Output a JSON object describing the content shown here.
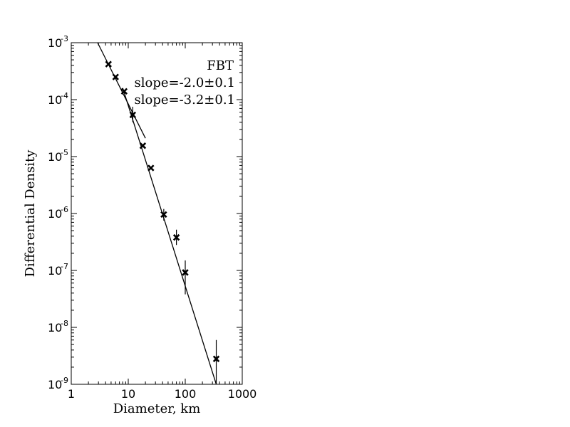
{
  "chart_data": {
    "type": "scatter",
    "title": "",
    "xlabel": "Diameter, km",
    "ylabel": "Differential Density",
    "x_scale": "log",
    "y_scale": "log",
    "xlim": [
      1,
      1000
    ],
    "ylim": [
      1e-09,
      0.001
    ],
    "x_ticks": [
      {
        "value": 1,
        "label": "1"
      },
      {
        "value": 10,
        "label": "10"
      },
      {
        "value": 100,
        "label": "100"
      },
      {
        "value": 1000,
        "label": "1000"
      }
    ],
    "y_ticks": [
      {
        "value": 1e-09,
        "base": "10",
        "exp": "-9"
      },
      {
        "value": 1e-08,
        "base": "10",
        "exp": "-8"
      },
      {
        "value": 1e-07,
        "base": "10",
        "exp": "-7"
      },
      {
        "value": 1e-06,
        "base": "10",
        "exp": "-6"
      },
      {
        "value": 1e-05,
        "base": "10",
        "exp": "-5"
      },
      {
        "value": 0.0001,
        "base": "10",
        "exp": "-4"
      },
      {
        "value": 0.001,
        "base": "10",
        "exp": "-3"
      }
    ],
    "grid": false,
    "annotations": [
      "FBT",
      "slope=-2.0±0.1",
      "slope=-3.2±0.1"
    ],
    "points": [
      {
        "x": 4.5,
        "y": 0.00042,
        "err_low": null,
        "err_high": null
      },
      {
        "x": 6.0,
        "y": 0.00025,
        "err_low": null,
        "err_high": null
      },
      {
        "x": 8.5,
        "y": 0.00014,
        "err_low": null,
        "err_high": null
      },
      {
        "x": 12.0,
        "y": 5.4e-05,
        "err_low": 4e-05,
        "err_high": 7.5e-05
      },
      {
        "x": 18.0,
        "y": 1.55e-05,
        "err_low": null,
        "err_high": null
      },
      {
        "x": 25.0,
        "y": 6.3e-06,
        "err_low": null,
        "err_high": null
      },
      {
        "x": 42.0,
        "y": 9.6e-07,
        "err_low": 7.5e-07,
        "err_high": 1.2e-06
      },
      {
        "x": 70.0,
        "y": 3.8e-07,
        "err_low": 2.8e-07,
        "err_high": 5.2e-07
      },
      {
        "x": 100.0,
        "y": 9.2e-08,
        "err_low": 3.8e-08,
        "err_high": 1.5e-07
      },
      {
        "x": 350.0,
        "y": 2.8e-09,
        "err_low": 1e-09,
        "err_high": 6e-09
      }
    ],
    "fit_lines": [
      {
        "slope": -2.0,
        "x_start": 2.9,
        "y_start": 0.001,
        "x_end": 20.0,
        "y_end": 2.1e-05
      },
      {
        "slope": -3.2,
        "x_start": 8.0,
        "y_start": 0.00016,
        "x_end": 350.0,
        "y_end": 1e-09
      }
    ]
  }
}
